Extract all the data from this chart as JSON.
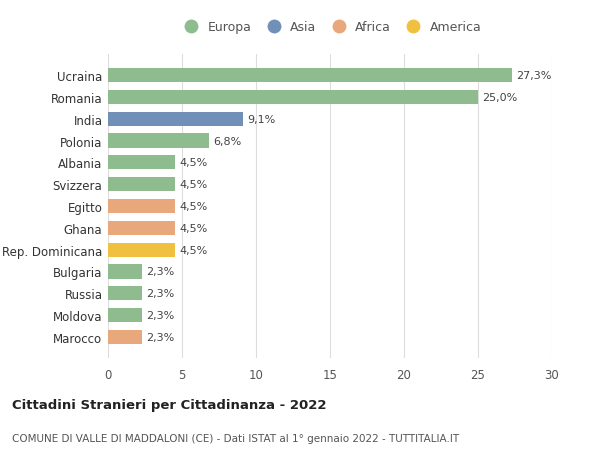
{
  "countries": [
    "Marocco",
    "Moldova",
    "Russia",
    "Bulgaria",
    "Rep. Dominicana",
    "Ghana",
    "Egitto",
    "Svizzera",
    "Albania",
    "Polonia",
    "India",
    "Romania",
    "Ucraina"
  ],
  "values": [
    2.3,
    2.3,
    2.3,
    2.3,
    4.5,
    4.5,
    4.5,
    4.5,
    4.5,
    6.8,
    9.1,
    25.0,
    27.3
  ],
  "labels": [
    "2,3%",
    "2,3%",
    "2,3%",
    "2,3%",
    "4,5%",
    "4,5%",
    "4,5%",
    "4,5%",
    "4,5%",
    "6,8%",
    "9,1%",
    "25,0%",
    "27,3%"
  ],
  "colors": [
    "#e8a87c",
    "#8fbc8f",
    "#8fbc8f",
    "#8fbc8f",
    "#f0c040",
    "#e8a87c",
    "#e8a87c",
    "#8fbc8f",
    "#8fbc8f",
    "#8fbc8f",
    "#7090b8",
    "#8fbc8f",
    "#8fbc8f"
  ],
  "legend_labels": [
    "Europa",
    "Asia",
    "Africa",
    "America"
  ],
  "legend_colors": [
    "#8fbc8f",
    "#7090b8",
    "#e8a87c",
    "#f0c040"
  ],
  "title1": "Cittadini Stranieri per Cittadinanza - 2022",
  "title2": "COMUNE DI VALLE DI MADDALONI (CE) - Dati ISTAT al 1° gennaio 2022 - TUTTITALIA.IT",
  "xlim": [
    0,
    30
  ],
  "xticks": [
    0,
    5,
    10,
    15,
    20,
    25,
    30
  ],
  "background_color": "#ffffff",
  "grid_color": "#dddddd",
  "bar_height": 0.65
}
